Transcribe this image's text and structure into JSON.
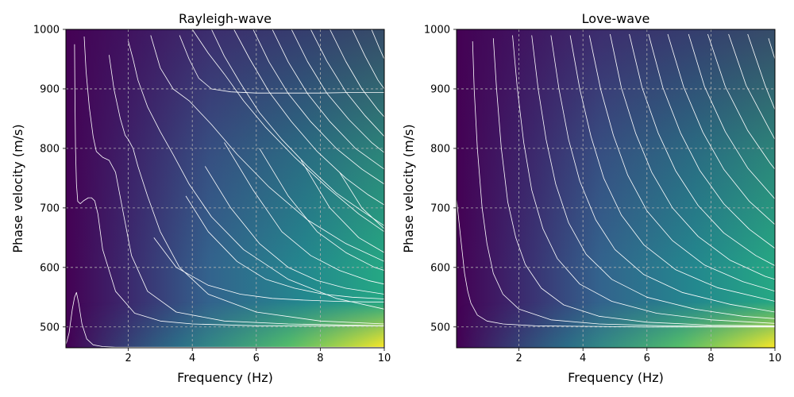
{
  "chart_data": [
    {
      "type": "heatmap",
      "title": "Rayleigh-wave",
      "xlabel": "Frequency (Hz)",
      "ylabel": "Phase velocity (m/s)",
      "xlim": [
        0.05,
        10
      ],
      "ylim": [
        465,
        1000
      ],
      "xticks": [
        2,
        4,
        6,
        8,
        10
      ],
      "yticks": [
        500,
        600,
        700,
        800,
        900,
        1000
      ],
      "grid": true,
      "colormap": "viridis",
      "curve_color": "#ffffff",
      "curves": [
        {
          "x": [
            0.05,
            0.15,
            0.25,
            0.32,
            0.38,
            0.45,
            0.55,
            0.7,
            0.9,
            1.2,
            1.6,
            2.5,
            4,
            6,
            8,
            10
          ],
          "y": [
            470,
            490,
            530,
            550,
            558,
            540,
            505,
            480,
            470,
            467,
            466,
            466,
            466,
            466,
            466,
            466
          ]
        },
        {
          "x": [
            0.32,
            0.33,
            0.35,
            0.38,
            0.42,
            0.5,
            0.6,
            0.75,
            0.85,
            0.95,
            1.05,
            1.2,
            1.6,
            2.2,
            3,
            4,
            6,
            8,
            10
          ],
          "y": [
            975,
            900,
            800,
            740,
            711,
            707,
            712,
            717,
            717,
            712,
            690,
            630,
            560,
            523,
            510,
            505,
            502,
            502,
            502
          ]
        },
        {
          "x": [
            0.62,
            0.68,
            0.78,
            0.9,
            1.0,
            1.2,
            1.4,
            1.6,
            1.85,
            2.1,
            2.6,
            3.5,
            5,
            7,
            9,
            10
          ],
          "y": [
            988,
            930,
            870,
            820,
            795,
            785,
            780,
            760,
            690,
            620,
            560,
            525,
            510,
            505,
            503,
            502
          ]
        },
        {
          "x": [
            1.4,
            1.55,
            1.75,
            1.9,
            2.0,
            2.15,
            2.3,
            2.6,
            3.0,
            3.6,
            4.5,
            6,
            8,
            10
          ],
          "y": [
            957,
            900,
            850,
            822,
            815,
            800,
            770,
            720,
            660,
            600,
            555,
            525,
            510,
            505
          ]
        },
        {
          "x": [
            2.0,
            2.15,
            2.3,
            2.6,
            3.0,
            3.4,
            3.9,
            4.6,
            5.6,
            7,
            8.5,
            10
          ],
          "y": [
            980,
            950,
            915,
            870,
            828,
            790,
            740,
            685,
            630,
            580,
            548,
            530
          ]
        },
        {
          "x": [
            2.7,
            3.0,
            3.4,
            3.9,
            4.6,
            5.4,
            6.4,
            7.6,
            8.8,
            10
          ],
          "y": [
            990,
            935,
            900,
            880,
            840,
            790,
            735,
            680,
            640,
            610
          ]
        },
        {
          "x": [
            3.6,
            3.9,
            4.2,
            4.6,
            5.2,
            6.0,
            7.0,
            8.0,
            9.0,
            10
          ],
          "y": [
            990,
            950,
            918,
            900,
            895,
            893,
            893,
            893,
            894,
            894
          ]
        },
        {
          "x": [
            4.0,
            4.5,
            5.0,
            5.6,
            6.3,
            7.2,
            8.2,
            9.2,
            10
          ],
          "y": [
            1000,
            960,
            925,
            880,
            835,
            785,
            735,
            690,
            660
          ]
        },
        {
          "x": [
            4.6,
            5.0,
            5.5,
            6.1,
            6.8,
            7.6,
            8.5,
            9.3,
            10
          ],
          "y": [
            1000,
            955,
            910,
            860,
            815,
            770,
            725,
            695,
            670
          ]
        },
        {
          "x": [
            5.3,
            5.8,
            6.4,
            7.1,
            7.9,
            8.8,
            9.5,
            10
          ],
          "y": [
            1000,
            950,
            895,
            845,
            795,
            750,
            722,
            705
          ]
        },
        {
          "x": [
            5.9,
            6.4,
            7.0,
            7.7,
            8.5,
            9.3,
            10
          ],
          "y": [
            1000,
            945,
            892,
            845,
            800,
            765,
            740
          ]
        },
        {
          "x": [
            6.5,
            7.0,
            7.6,
            8.3,
            9.1,
            10
          ],
          "y": [
            1000,
            945,
            892,
            845,
            800,
            765
          ]
        },
        {
          "x": [
            7.1,
            7.6,
            8.2,
            8.9,
            9.6,
            10
          ],
          "y": [
            1000,
            946,
            893,
            848,
            810,
            793
          ]
        },
        {
          "x": [
            7.7,
            8.2,
            8.8,
            9.4,
            10
          ],
          "y": [
            1000,
            947,
            895,
            855,
            820
          ]
        },
        {
          "x": [
            8.3,
            8.8,
            9.3,
            9.8,
            10
          ],
          "y": [
            1000,
            946,
            900,
            865,
            853
          ]
        },
        {
          "x": [
            9.0,
            9.4,
            9.8,
            10
          ],
          "y": [
            1000,
            955,
            915,
            900
          ]
        },
        {
          "x": [
            9.6,
            9.85,
            10
          ],
          "y": [
            1000,
            968,
            950
          ]
        },
        {
          "x": [
            2.8,
            3.5,
            4.5,
            5.5,
            6.5,
            7.5,
            8.5,
            9.5,
            10
          ],
          "y": [
            650,
            600,
            570,
            555,
            548,
            545,
            543,
            542,
            542
          ]
        },
        {
          "x": [
            3.8,
            4.5,
            5.4,
            6.3,
            7.2,
            8.1,
            9.0,
            10
          ],
          "y": [
            720,
            660,
            610,
            580,
            565,
            555,
            550,
            547
          ]
        },
        {
          "x": [
            4.4,
            5.2,
            6.1,
            7.0,
            7.9,
            8.8,
            10
          ],
          "y": [
            770,
            700,
            640,
            600,
            578,
            565,
            555
          ]
        },
        {
          "x": [
            5.0,
            5.9,
            6.8,
            7.7,
            8.6,
            9.5,
            10
          ],
          "y": [
            810,
            730,
            660,
            620,
            595,
            578,
            572
          ]
        },
        {
          "x": [
            6.1,
            7.0,
            7.9,
            8.8,
            9.7,
            10
          ],
          "y": [
            800,
            720,
            660,
            625,
            600,
            595
          ]
        },
        {
          "x": [
            7.4,
            8.3,
            9.2,
            10
          ],
          "y": [
            780,
            700,
            650,
            625
          ]
        },
        {
          "x": [
            8.6,
            9.3,
            10
          ],
          "y": [
            760,
            700,
            665
          ]
        }
      ]
    },
    {
      "type": "heatmap",
      "title": "Love-wave",
      "xlabel": "Frequency (Hz)",
      "ylabel": "Phase velocity (m/s)",
      "xlim": [
        0.05,
        10
      ],
      "ylim": [
        465,
        1000
      ],
      "xticks": [
        2,
        4,
        6,
        8,
        10
      ],
      "yticks": [
        500,
        600,
        700,
        800,
        900,
        1000
      ],
      "grid": true,
      "colormap": "viridis",
      "curve_color": "#ffffff",
      "curves": [
        {
          "x": [
            0.05,
            0.1,
            0.2,
            0.3,
            0.4,
            0.5,
            0.7,
            1.0,
            1.5,
            2.5,
            4,
            6,
            8,
            10
          ],
          "y": [
            715,
            690,
            640,
            590,
            560,
            540,
            520,
            510,
            505,
            502,
            501,
            500,
            500,
            500
          ]
        },
        {
          "x": [
            0.55,
            0.6,
            0.7,
            0.85,
            1.0,
            1.2,
            1.5,
            2.0,
            3.0,
            4.5,
            6.5,
            8.5,
            10
          ],
          "y": [
            980,
            900,
            800,
            700,
            640,
            590,
            555,
            530,
            512,
            505,
            502,
            501,
            501
          ]
        },
        {
          "x": [
            1.2,
            1.3,
            1.45,
            1.65,
            1.9,
            2.2,
            2.7,
            3.4,
            4.5,
            6,
            8,
            10
          ],
          "y": [
            985,
            900,
            800,
            710,
            650,
            605,
            565,
            537,
            518,
            508,
            503,
            502
          ]
        },
        {
          "x": [
            1.8,
            1.95,
            2.15,
            2.4,
            2.75,
            3.2,
            3.9,
            4.9,
            6.3,
            8,
            10
          ],
          "y": [
            990,
            900,
            810,
            730,
            665,
            615,
            572,
            543,
            523,
            512,
            506
          ]
        },
        {
          "x": [
            2.4,
            2.6,
            2.85,
            3.15,
            3.55,
            4.1,
            4.9,
            6.0,
            7.5,
            9,
            10
          ],
          "y": [
            990,
            900,
            815,
            740,
            675,
            622,
            580,
            550,
            530,
            518,
            514
          ]
        },
        {
          "x": [
            3.0,
            3.25,
            3.55,
            3.9,
            4.4,
            5.0,
            5.9,
            7.1,
            8.6,
            10
          ],
          "y": [
            990,
            900,
            815,
            745,
            680,
            630,
            588,
            558,
            538,
            525
          ]
        },
        {
          "x": [
            3.6,
            3.9,
            4.25,
            4.65,
            5.2,
            5.9,
            6.9,
            8.2,
            10
          ],
          "y": [
            990,
            900,
            820,
            750,
            688,
            638,
            596,
            566,
            543
          ]
        },
        {
          "x": [
            4.2,
            4.55,
            4.95,
            5.4,
            6.0,
            6.8,
            7.8,
            9.0,
            10
          ],
          "y": [
            990,
            900,
            822,
            755,
            695,
            645,
            604,
            576,
            560
          ]
        },
        {
          "x": [
            4.85,
            5.2,
            5.65,
            6.15,
            6.8,
            7.6,
            8.6,
            9.7,
            10
          ],
          "y": [
            992,
            902,
            825,
            760,
            700,
            652,
            612,
            585,
            580
          ]
        },
        {
          "x": [
            5.45,
            5.85,
            6.35,
            6.9,
            7.6,
            8.4,
            9.4,
            10
          ],
          "y": [
            992,
            902,
            826,
            762,
            704,
            658,
            620,
            603
          ]
        },
        {
          "x": [
            6.05,
            6.5,
            7.05,
            7.65,
            8.4,
            9.2,
            10
          ],
          "y": [
            992,
            902,
            826,
            763,
            707,
            664,
            632
          ]
        },
        {
          "x": [
            6.65,
            7.15,
            7.75,
            8.4,
            9.2,
            10
          ],
          "y": [
            992,
            903,
            827,
            765,
            711,
            672
          ]
        },
        {
          "x": [
            7.3,
            7.8,
            8.45,
            9.15,
            10
          ],
          "y": [
            992,
            904,
            828,
            767,
            715
          ]
        },
        {
          "x": [
            7.9,
            8.45,
            9.15,
            9.85,
            10
          ],
          "y": [
            992,
            904,
            830,
            775,
            765
          ]
        },
        {
          "x": [
            8.55,
            9.1,
            9.8,
            10
          ],
          "y": [
            992,
            906,
            835,
            815
          ]
        },
        {
          "x": [
            9.15,
            9.7,
            10
          ],
          "y": [
            992,
            905,
            865
          ]
        },
        {
          "x": [
            9.8,
            10
          ],
          "y": [
            985,
            950
          ]
        }
      ]
    }
  ]
}
